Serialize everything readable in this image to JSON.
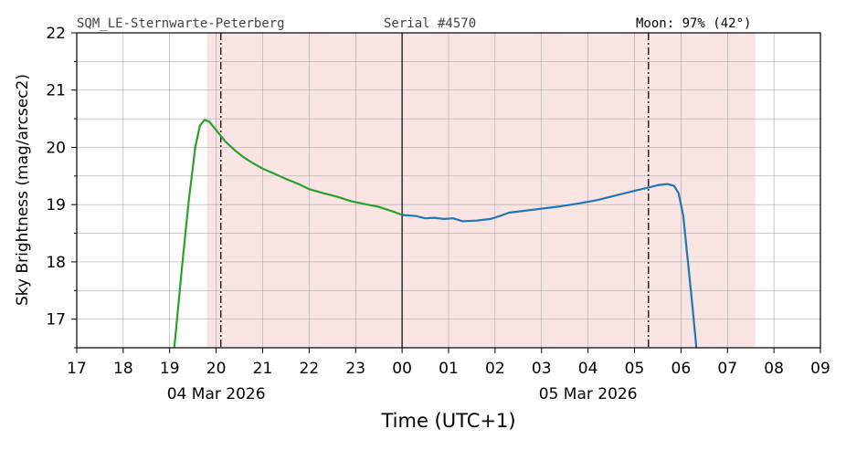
{
  "header": {
    "station": "SQM_LE-Sternwarte-Peterberg",
    "serial": "Serial #4570",
    "moon": "Moon: 97% (42°)"
  },
  "chart_data": {
    "type": "line",
    "xlabel": "Time (UTC+1)",
    "ylabel": "Sky Brightness (mag/arcsec2)",
    "xlim": [
      17,
      33
    ],
    "ylim": [
      16.5,
      22
    ],
    "x_ticks": [
      {
        "v": 17,
        "label": "17"
      },
      {
        "v": 18,
        "label": "18"
      },
      {
        "v": 19,
        "label": "19"
      },
      {
        "v": 20,
        "label": "20"
      },
      {
        "v": 21,
        "label": "21"
      },
      {
        "v": 22,
        "label": "22"
      },
      {
        "v": 23,
        "label": "23"
      },
      {
        "v": 24,
        "label": "00"
      },
      {
        "v": 25,
        "label": "01"
      },
      {
        "v": 26,
        "label": "02"
      },
      {
        "v": 27,
        "label": "03"
      },
      {
        "v": 28,
        "label": "04"
      },
      {
        "v": 29,
        "label": "05"
      },
      {
        "v": 30,
        "label": "06"
      },
      {
        "v": 31,
        "label": "07"
      },
      {
        "v": 32,
        "label": "08"
      },
      {
        "v": 33,
        "label": "09"
      }
    ],
    "date_labels": [
      {
        "v": 20,
        "label": "04 Mar 2026"
      },
      {
        "v": 28,
        "label": "05 Mar 2026"
      }
    ],
    "y_ticks": [
      17,
      18,
      19,
      20,
      21,
      22
    ],
    "y_minor_ticks": [
      16.5,
      17.5,
      18.5,
      19.5,
      20.5,
      21.5
    ],
    "grid": true,
    "shaded_span": {
      "from": 19.8,
      "to": 31.6,
      "color": "#f9e4e4"
    },
    "midnight_line": 24,
    "dashdot_lines": [
      20.1,
      29.3
    ],
    "series": [
      {
        "color": "#2ca02c",
        "points": [
          [
            19.1,
            16.5
          ],
          [
            19.25,
            17.8
          ],
          [
            19.4,
            19.0
          ],
          [
            19.55,
            20.0
          ],
          [
            19.65,
            20.38
          ],
          [
            19.75,
            20.48
          ],
          [
            19.85,
            20.45
          ],
          [
            20.0,
            20.3
          ],
          [
            20.2,
            20.1
          ],
          [
            20.4,
            19.95
          ],
          [
            20.6,
            19.82
          ],
          [
            20.8,
            19.72
          ],
          [
            21.0,
            19.63
          ],
          [
            21.2,
            19.56
          ],
          [
            21.5,
            19.45
          ],
          [
            21.8,
            19.35
          ],
          [
            22.0,
            19.27
          ],
          [
            22.3,
            19.2
          ],
          [
            22.6,
            19.14
          ],
          [
            22.9,
            19.06
          ],
          [
            23.2,
            19.01
          ],
          [
            23.5,
            18.96
          ],
          [
            23.8,
            18.88
          ],
          [
            24.0,
            18.82
          ]
        ]
      },
      {
        "color": "#1f77b4",
        "points": [
          [
            24.0,
            18.82
          ],
          [
            24.3,
            18.8
          ],
          [
            24.5,
            18.76
          ],
          [
            24.7,
            18.77
          ],
          [
            24.9,
            18.75
          ],
          [
            25.1,
            18.76
          ],
          [
            25.3,
            18.71
          ],
          [
            25.6,
            18.72
          ],
          [
            25.9,
            18.75
          ],
          [
            26.1,
            18.8
          ],
          [
            26.3,
            18.86
          ],
          [
            26.6,
            18.89
          ],
          [
            27.0,
            18.93
          ],
          [
            27.4,
            18.97
          ],
          [
            27.8,
            19.02
          ],
          [
            28.2,
            19.08
          ],
          [
            28.6,
            19.16
          ],
          [
            29.0,
            19.24
          ],
          [
            29.3,
            19.3
          ],
          [
            29.5,
            19.34
          ],
          [
            29.7,
            19.36
          ],
          [
            29.85,
            19.33
          ],
          [
            29.95,
            19.2
          ],
          [
            30.05,
            18.8
          ],
          [
            30.15,
            18.0
          ],
          [
            30.25,
            17.2
          ],
          [
            30.33,
            16.5
          ]
        ]
      }
    ]
  }
}
